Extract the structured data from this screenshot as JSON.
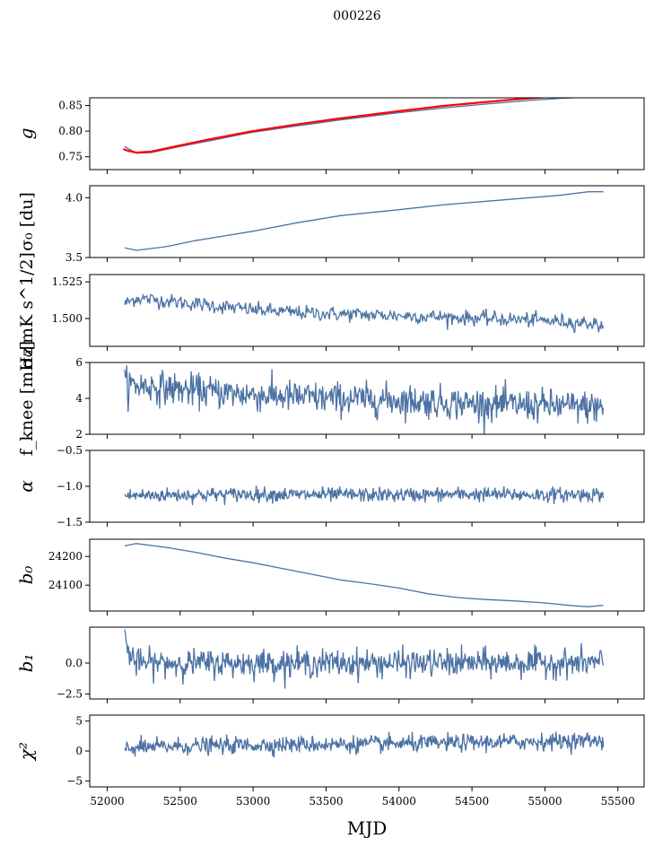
{
  "figure": {
    "title": "000226",
    "xlabel": "MJD",
    "xlim": [
      51880,
      55680
    ],
    "xticks": [
      52000,
      52500,
      53000,
      53500,
      54000,
      54500,
      55000,
      55500
    ]
  },
  "chart_data": [
    {
      "type": "line",
      "name": "g",
      "ylabel": "g",
      "ylim": [
        0.725,
        0.865
      ],
      "yticks": [
        0.75,
        0.8,
        0.85
      ],
      "yticklabels": [
        "0.75",
        "0.80",
        "0.85"
      ],
      "colors": [
        "#4c72a4",
        "#ff0000"
      ],
      "series": [
        {
          "x": [
            52120,
            52200,
            52300,
            52500,
            52700,
            53000,
            53300,
            53600,
            54000,
            54300,
            54600,
            54900,
            55100,
            55200
          ],
          "y": [
            0.77,
            0.757,
            0.758,
            0.77,
            0.781,
            0.798,
            0.81,
            0.822,
            0.836,
            0.845,
            0.853,
            0.86,
            0.864,
            0.865
          ]
        },
        {
          "x": [
            52110,
            52140,
            52200,
            52300,
            52500,
            52700,
            53000,
            53300,
            53600,
            54000,
            54300,
            54600,
            54800,
            55000
          ],
          "y": [
            0.765,
            0.762,
            0.758,
            0.76,
            0.772,
            0.784,
            0.8,
            0.813,
            0.825,
            0.839,
            0.849,
            0.857,
            0.862,
            0.866
          ]
        }
      ]
    },
    {
      "type": "line",
      "name": "sigma0-du",
      "ylabel": "σ₀ [du]",
      "ylim": [
        3.5,
        4.1
      ],
      "yticks": [
        3.5,
        4.0
      ],
      "yticklabels": [
        "3.5",
        "4.0"
      ],
      "series": [
        {
          "x": [
            52120,
            52200,
            52400,
            52600,
            52800,
            53000,
            53300,
            53600,
            54000,
            54300,
            54600,
            54900,
            55100,
            55300,
            55400
          ],
          "y": [
            3.58,
            3.56,
            3.59,
            3.64,
            3.68,
            3.72,
            3.79,
            3.85,
            3.9,
            3.94,
            3.97,
            4.0,
            4.02,
            4.05,
            4.05
          ]
        }
      ]
    },
    {
      "type": "line",
      "name": "sigma0-mk",
      "ylabel": "σ₀[mK s^1/2]",
      "ylim": [
        1.481,
        1.53
      ],
      "yticks": [
        1.5,
        1.525
      ],
      "yticklabels": [
        "1.500",
        "1.525"
      ],
      "series": [
        {
          "x": [
            52120,
            52200,
            52400,
            52600,
            52800,
            53000,
            53300,
            53600,
            54000,
            54300,
            54600,
            54900,
            55100,
            55300,
            55400
          ],
          "y": [
            1.51,
            1.514,
            1.512,
            1.51,
            1.508,
            1.506,
            1.504,
            1.503,
            1.502,
            1.501,
            1.5,
            1.499,
            1.498,
            1.497,
            1.495
          ],
          "noise": 0.0025,
          "npts": 520
        }
      ]
    },
    {
      "type": "line",
      "name": "fknee",
      "ylabel": "f_knee [mHz]",
      "ylim": [
        2,
        6
      ],
      "yticks": [
        2,
        4,
        6
      ],
      "yticklabels": [
        "2",
        "4",
        "6"
      ],
      "series": [
        {
          "x": [
            52120,
            52500,
            53000,
            53500,
            54000,
            54500,
            55000,
            55400
          ],
          "y": [
            4.8,
            4.5,
            4.2,
            4.0,
            3.9,
            3.7,
            3.6,
            3.5
          ],
          "noise": 0.45,
          "npts": 700
        }
      ]
    },
    {
      "type": "line",
      "name": "alpha",
      "ylabel": "α",
      "ylim": [
        -1.5,
        -0.5
      ],
      "yticks": [
        -1.5,
        -1.0,
        -0.5
      ],
      "yticklabels": [
        "−1.5",
        "−1.0",
        "−0.5"
      ],
      "series": [
        {
          "x": [
            52120,
            52500,
            53000,
            53500,
            54000,
            54500,
            55000,
            55400
          ],
          "y": [
            -1.13,
            -1.12,
            -1.11,
            -1.12,
            -1.12,
            -1.11,
            -1.12,
            -1.11
          ],
          "noise": 0.05,
          "npts": 700
        }
      ]
    },
    {
      "type": "line",
      "name": "b0",
      "ylabel": "b₀",
      "ylim": [
        24010,
        24260
      ],
      "yticks": [
        24100,
        24200
      ],
      "yticklabels": [
        "24100",
        "24200"
      ],
      "series": [
        {
          "x": [
            52120,
            52200,
            52400,
            52600,
            52800,
            53000,
            53200,
            53400,
            53600,
            53800,
            54000,
            54200,
            54400,
            54600,
            54800,
            55000,
            55200,
            55300,
            55400
          ],
          "y": [
            24237,
            24245,
            24232,
            24215,
            24195,
            24178,
            24158,
            24138,
            24118,
            24105,
            24090,
            24070,
            24057,
            24050,
            24045,
            24038,
            24028,
            24025,
            24030
          ]
        }
      ]
    },
    {
      "type": "line",
      "name": "b1",
      "ylabel": "b₁",
      "ylim": [
        -2.9,
        2.9
      ],
      "yticks": [
        -2.5,
        0.0
      ],
      "yticklabels": [
        "−2.5",
        "0.0"
      ],
      "series": [
        {
          "x": [
            52120,
            52140,
            52200,
            52500,
            53000,
            53500,
            54000,
            54500,
            55000,
            55400
          ],
          "y": [
            2.2,
            1.0,
            0.0,
            0.0,
            0.0,
            0.0,
            0.0,
            0.0,
            0.0,
            0.0
          ],
          "noise": 0.55,
          "npts": 700
        }
      ]
    },
    {
      "type": "line",
      "name": "chi2",
      "ylabel": "χ²",
      "ylim": [
        -6,
        6
      ],
      "yticks": [
        -5,
        0,
        5
      ],
      "yticklabels": [
        "−5",
        "0",
        "5"
      ],
      "series": [
        {
          "x": [
            52120,
            52500,
            53000,
            53500,
            54000,
            54500,
            55000,
            55400
          ],
          "y": [
            0.5,
            0.8,
            1.0,
            1.1,
            1.2,
            1.4,
            1.6,
            1.8
          ],
          "noise": 0.7,
          "npts": 700
        }
      ]
    }
  ]
}
